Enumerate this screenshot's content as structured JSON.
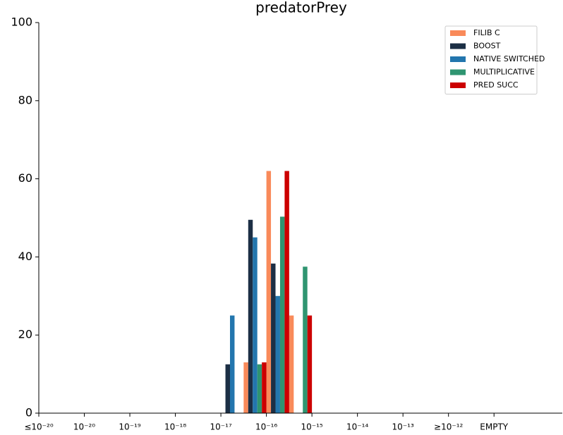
{
  "chart_data": {
    "type": "bar",
    "title": "predatorPrey",
    "x": [
      4,
      4.5,
      5,
      5.5
    ],
    "series": [
      {
        "name": "FILIB C",
        "color": "#f98a5a",
        "values": [
          0,
          13,
          62,
          25
        ]
      },
      {
        "name": "BOOST",
        "color": "#1c2f45",
        "values": [
          12.5,
          49.5,
          38.3,
          0
        ]
      },
      {
        "name": "NATIVE SWITCHED",
        "color": "#2376ae",
        "values": [
          25,
          45,
          30,
          0
        ]
      },
      {
        "name": "MULTIPLICATIVE",
        "color": "#2f9571",
        "values": [
          0,
          12.5,
          50.3,
          37.5
        ]
      },
      {
        "name": "PRED SUCC",
        "color": "#cc0000",
        "values": [
          0,
          13,
          62,
          25
        ]
      }
    ],
    "xlim": [
      0,
      11.5
    ],
    "xticks": [
      {
        "value": 0,
        "label": "≤10⁻²⁰"
      },
      {
        "value": 1,
        "label": "10⁻²⁰"
      },
      {
        "value": 2,
        "label": "10⁻¹⁹"
      },
      {
        "value": 3,
        "label": "10⁻¹⁸"
      },
      {
        "value": 4,
        "label": "10⁻¹⁷"
      },
      {
        "value": 5,
        "label": "10⁻¹⁶"
      },
      {
        "value": 6,
        "label": "10⁻¹⁵"
      },
      {
        "value": 7,
        "label": "10⁻¹⁴"
      },
      {
        "value": 8,
        "label": "10⁻¹³"
      },
      {
        "value": 9,
        "label": "≥10⁻¹²"
      },
      {
        "value": 10,
        "label": "EMPTY"
      }
    ],
    "ylim": [
      0,
      100
    ],
    "yticks": [
      0,
      20,
      40,
      60,
      80,
      100
    ],
    "legend": "upper right"
  }
}
